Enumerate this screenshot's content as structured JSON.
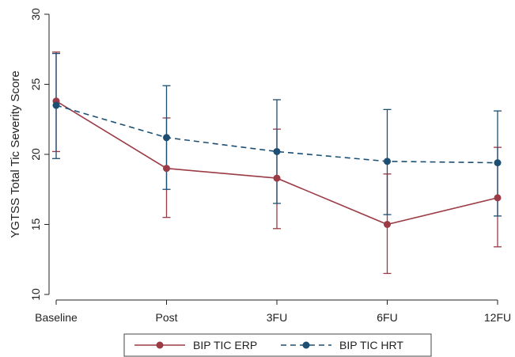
{
  "chart_data": {
    "type": "line",
    "title": "",
    "xlabel": "",
    "ylabel": "YGTSS Total Tic Severity Score",
    "categories": [
      "Baseline",
      "Post",
      "3FU",
      "6FU",
      "12FU"
    ],
    "ylim": [
      10,
      30
    ],
    "yticks": [
      10,
      15,
      20,
      25,
      30
    ],
    "grid": false,
    "legend_position": "bottom",
    "error_bars": true,
    "series": [
      {
        "name": "BIP TIC ERP",
        "color": "#9b3b45",
        "line_style": "solid",
        "marker": "circle",
        "values": [
          23.8,
          19.0,
          18.3,
          15.0,
          16.9
        ],
        "lower": [
          20.2,
          15.5,
          14.7,
          11.5,
          13.4
        ],
        "upper": [
          27.3,
          22.6,
          21.8,
          18.6,
          20.5
        ]
      },
      {
        "name": "BIP TIC HRT",
        "color": "#1d4f73",
        "line_style": "dashed",
        "marker": "circle",
        "values": [
          23.5,
          21.2,
          20.2,
          19.5,
          19.4
        ],
        "lower": [
          19.7,
          17.5,
          16.5,
          15.7,
          15.6
        ],
        "upper": [
          27.2,
          24.9,
          23.9,
          23.2,
          23.1
        ]
      }
    ]
  }
}
